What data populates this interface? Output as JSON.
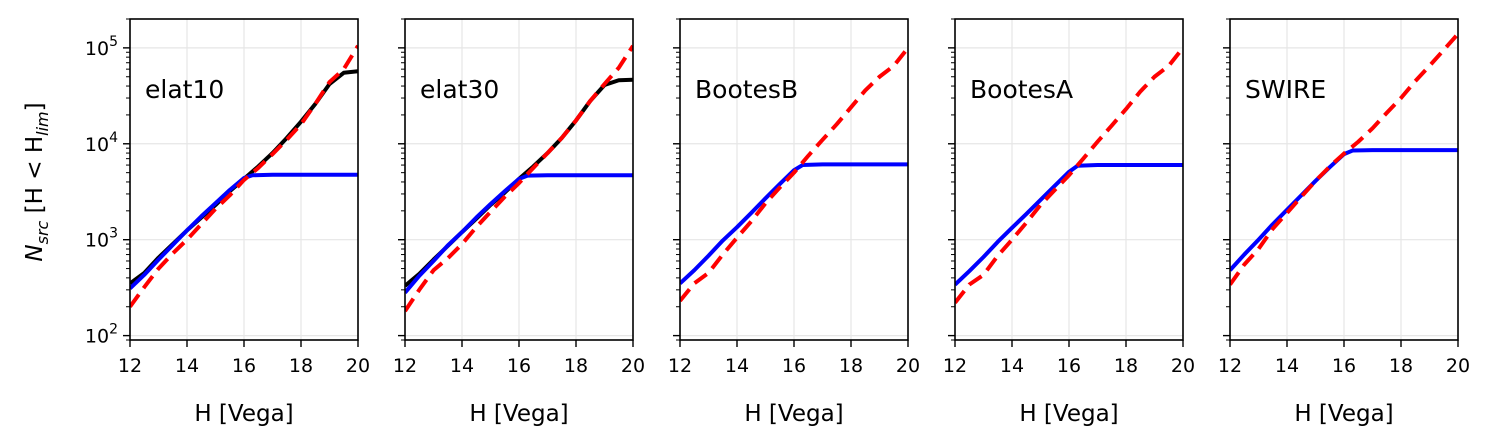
{
  "figure": {
    "ylabel": {
      "main": "N",
      "sub": "src",
      "bracket_open": " [H < H",
      "sub2": "lim",
      "bracket_close": "]"
    },
    "xlabel": "H [Vega]"
  },
  "colors": {
    "black_series": "#000000",
    "blue_series": "#0000ff",
    "red_series": "#ff0000",
    "grid": "#e6e6e6"
  },
  "chart_data": [
    {
      "type": "line",
      "label": "elat10",
      "xlim": [
        12,
        20
      ],
      "ylim": [
        90,
        200000
      ],
      "yscale": "log",
      "grid": true,
      "xticks": [
        12,
        14,
        16,
        18,
        20
      ],
      "yticks": [
        100,
        1000,
        10000,
        100000
      ],
      "ytick_labels": [
        [
          "10",
          "2"
        ],
        [
          "10",
          "3"
        ],
        [
          "10",
          "4"
        ],
        [
          "10",
          "5"
        ]
      ],
      "series": [
        {
          "style": "black-solid",
          "points": [
            [
              12,
              350
            ],
            [
              12.5,
              450
            ],
            [
              13,
              650
            ],
            [
              13.5,
              900
            ],
            [
              14,
              1250
            ],
            [
              14.5,
              1700
            ],
            [
              15,
              2300
            ],
            [
              15.5,
              3200
            ],
            [
              16,
              4300
            ],
            [
              16.5,
              5800
            ],
            [
              17,
              8000
            ],
            [
              17.5,
              11500
            ],
            [
              18,
              17000
            ],
            [
              18.5,
              26000
            ],
            [
              19,
              42000
            ],
            [
              19.5,
              55000
            ],
            [
              20,
              57000
            ]
          ]
        },
        {
          "style": "blue-solid",
          "points": [
            [
              12,
              310
            ],
            [
              12.5,
              430
            ],
            [
              13,
              620
            ],
            [
              13.5,
              880
            ],
            [
              14,
              1250
            ],
            [
              14.5,
              1750
            ],
            [
              15,
              2400
            ],
            [
              15.5,
              3300
            ],
            [
              16,
              4400
            ],
            [
              16.3,
              4700
            ],
            [
              17,
              4750
            ],
            [
              18,
              4750
            ],
            [
              19,
              4750
            ],
            [
              20,
              4750
            ]
          ]
        },
        {
          "style": "red-dashed",
          "points": [
            [
              12,
              200
            ],
            [
              12.5,
              320
            ],
            [
              13,
              500
            ],
            [
              13.5,
              720
            ],
            [
              14,
              1000
            ],
            [
              14.5,
              1450
            ],
            [
              15,
              2100
            ],
            [
              15.5,
              2900
            ],
            [
              16,
              4200
            ],
            [
              16.5,
              5600
            ],
            [
              17,
              7800
            ],
            [
              17.5,
              11000
            ],
            [
              18,
              16000
            ],
            [
              18.5,
              26000
            ],
            [
              19,
              44000
            ],
            [
              19.5,
              60000
            ],
            [
              20,
              105000
            ]
          ]
        }
      ]
    },
    {
      "type": "line",
      "label": "elat30",
      "xlim": [
        12,
        20
      ],
      "ylim": [
        90,
        200000
      ],
      "yscale": "log",
      "grid": true,
      "xticks": [
        12,
        14,
        16,
        18,
        20
      ],
      "yticks": [
        100,
        1000,
        10000,
        100000
      ],
      "series": [
        {
          "style": "black-solid",
          "points": [
            [
              12,
              330
            ],
            [
              12.5,
              440
            ],
            [
              13,
              620
            ],
            [
              13.5,
              860
            ],
            [
              14,
              1200
            ],
            [
              14.5,
              1650
            ],
            [
              15,
              2300
            ],
            [
              15.5,
              3100
            ],
            [
              16,
              4300
            ],
            [
              16.5,
              5800
            ],
            [
              17,
              8000
            ],
            [
              17.5,
              11500
            ],
            [
              18,
              17500
            ],
            [
              18.5,
              28000
            ],
            [
              19,
              41000
            ],
            [
              19.5,
              46000
            ],
            [
              20,
              46500
            ]
          ]
        },
        {
          "style": "blue-solid",
          "points": [
            [
              12,
              280
            ],
            [
              12.5,
              420
            ],
            [
              13,
              600
            ],
            [
              13.5,
              870
            ],
            [
              14,
              1200
            ],
            [
              14.5,
              1700
            ],
            [
              15,
              2350
            ],
            [
              15.5,
              3200
            ],
            [
              16,
              4300
            ],
            [
              16.3,
              4650
            ],
            [
              17,
              4700
            ],
            [
              18,
              4700
            ],
            [
              19,
              4700
            ],
            [
              20,
              4700
            ]
          ]
        },
        {
          "style": "red-dashed",
          "points": [
            [
              12,
              180
            ],
            [
              12.5,
              300
            ],
            [
              13,
              480
            ],
            [
              13.5,
              640
            ],
            [
              14,
              900
            ],
            [
              14.5,
              1350
            ],
            [
              15,
              1950
            ],
            [
              15.5,
              2800
            ],
            [
              16,
              3900
            ],
            [
              16.5,
              5600
            ],
            [
              17,
              8000
            ],
            [
              17.5,
              11500
            ],
            [
              18,
              17500
            ],
            [
              18.5,
              28000
            ],
            [
              19,
              42000
            ],
            [
              19.5,
              62000
            ],
            [
              20,
              105000
            ]
          ]
        }
      ]
    },
    {
      "type": "line",
      "label": "BootesB",
      "xlim": [
        12,
        20
      ],
      "ylim": [
        90,
        200000
      ],
      "yscale": "log",
      "grid": true,
      "xticks": [
        12,
        14,
        16,
        18,
        20
      ],
      "yticks": [
        100,
        1000,
        10000,
        100000
      ],
      "series": [
        {
          "style": "blue-solid",
          "points": [
            [
              12,
              350
            ],
            [
              12.5,
              480
            ],
            [
              13,
              680
            ],
            [
              13.5,
              980
            ],
            [
              14,
              1350
            ],
            [
              14.5,
              1900
            ],
            [
              15,
              2700
            ],
            [
              15.5,
              3800
            ],
            [
              16,
              5300
            ],
            [
              16.3,
              6000
            ],
            [
              17,
              6100
            ],
            [
              18,
              6100
            ],
            [
              19,
              6100
            ],
            [
              20,
              6100
            ]
          ]
        },
        {
          "style": "red-dashed",
          "points": [
            [
              12,
              230
            ],
            [
              12.5,
              350
            ],
            [
              13,
              450
            ],
            [
              13.5,
              700
            ],
            [
              14,
              1050
            ],
            [
              14.5,
              1550
            ],
            [
              15,
              2400
            ],
            [
              15.5,
              3500
            ],
            [
              16,
              5000
            ],
            [
              16.5,
              7500
            ],
            [
              17,
              11000
            ],
            [
              17.5,
              16000
            ],
            [
              18,
              24000
            ],
            [
              18.5,
              36000
            ],
            [
              19,
              50000
            ],
            [
              19.5,
              65000
            ],
            [
              20,
              100000
            ]
          ]
        }
      ]
    },
    {
      "type": "line",
      "label": "BootesA",
      "xlim": [
        12,
        20
      ],
      "ylim": [
        90,
        200000
      ],
      "yscale": "log",
      "grid": true,
      "xticks": [
        12,
        14,
        16,
        18,
        20
      ],
      "yticks": [
        100,
        1000,
        10000,
        100000
      ],
      "series": [
        {
          "style": "blue-solid",
          "points": [
            [
              12,
              340
            ],
            [
              12.5,
              470
            ],
            [
              13,
              660
            ],
            [
              13.5,
              950
            ],
            [
              14,
              1330
            ],
            [
              14.5,
              1850
            ],
            [
              15,
              2600
            ],
            [
              15.5,
              3650
            ],
            [
              16,
              5100
            ],
            [
              16.3,
              5900
            ],
            [
              17,
              6000
            ],
            [
              18,
              6000
            ],
            [
              19,
              6000
            ],
            [
              20,
              6000
            ]
          ]
        },
        {
          "style": "red-dashed",
          "points": [
            [
              12,
              220
            ],
            [
              12.5,
              340
            ],
            [
              13,
              430
            ],
            [
              13.5,
              680
            ],
            [
              14,
              1000
            ],
            [
              14.5,
              1500
            ],
            [
              15,
              2300
            ],
            [
              15.5,
              3300
            ],
            [
              16,
              4700
            ],
            [
              16.5,
              7000
            ],
            [
              17,
              10500
            ],
            [
              17.5,
              15500
            ],
            [
              18,
              23000
            ],
            [
              18.5,
              35000
            ],
            [
              19,
              50000
            ],
            [
              19.5,
              65000
            ],
            [
              20,
              100000
            ]
          ]
        }
      ]
    },
    {
      "type": "line",
      "label": "SWIRE",
      "xlim": [
        12,
        20
      ],
      "ylim": [
        90,
        200000
      ],
      "yscale": "log",
      "grid": true,
      "xticks": [
        12,
        14,
        16,
        18,
        20
      ],
      "yticks": [
        100,
        1000,
        10000,
        100000
      ],
      "series": [
        {
          "style": "blue-solid",
          "points": [
            [
              12,
              480
            ],
            [
              12.5,
              700
            ],
            [
              13,
              1000
            ],
            [
              13.5,
              1450
            ],
            [
              14,
              2050
            ],
            [
              14.5,
              2900
            ],
            [
              15,
              4100
            ],
            [
              15.5,
              5700
            ],
            [
              16,
              7800
            ],
            [
              16.3,
              8500
            ],
            [
              17,
              8600
            ],
            [
              18,
              8600
            ],
            [
              19,
              8600
            ],
            [
              20,
              8600
            ]
          ]
        },
        {
          "style": "red-dashed",
          "points": [
            [
              12,
              340
            ],
            [
              12.5,
              550
            ],
            [
              13,
              800
            ],
            [
              13.5,
              1300
            ],
            [
              14,
              1900
            ],
            [
              14.5,
              2800
            ],
            [
              15,
              4100
            ],
            [
              15.5,
              5800
            ],
            [
              16,
              7900
            ],
            [
              16.5,
              10500
            ],
            [
              17,
              14500
            ],
            [
              17.5,
              21000
            ],
            [
              18,
              30000
            ],
            [
              18.5,
              45000
            ],
            [
              19,
              65000
            ],
            [
              19.5,
              95000
            ],
            [
              20,
              140000
            ]
          ]
        }
      ]
    }
  ]
}
